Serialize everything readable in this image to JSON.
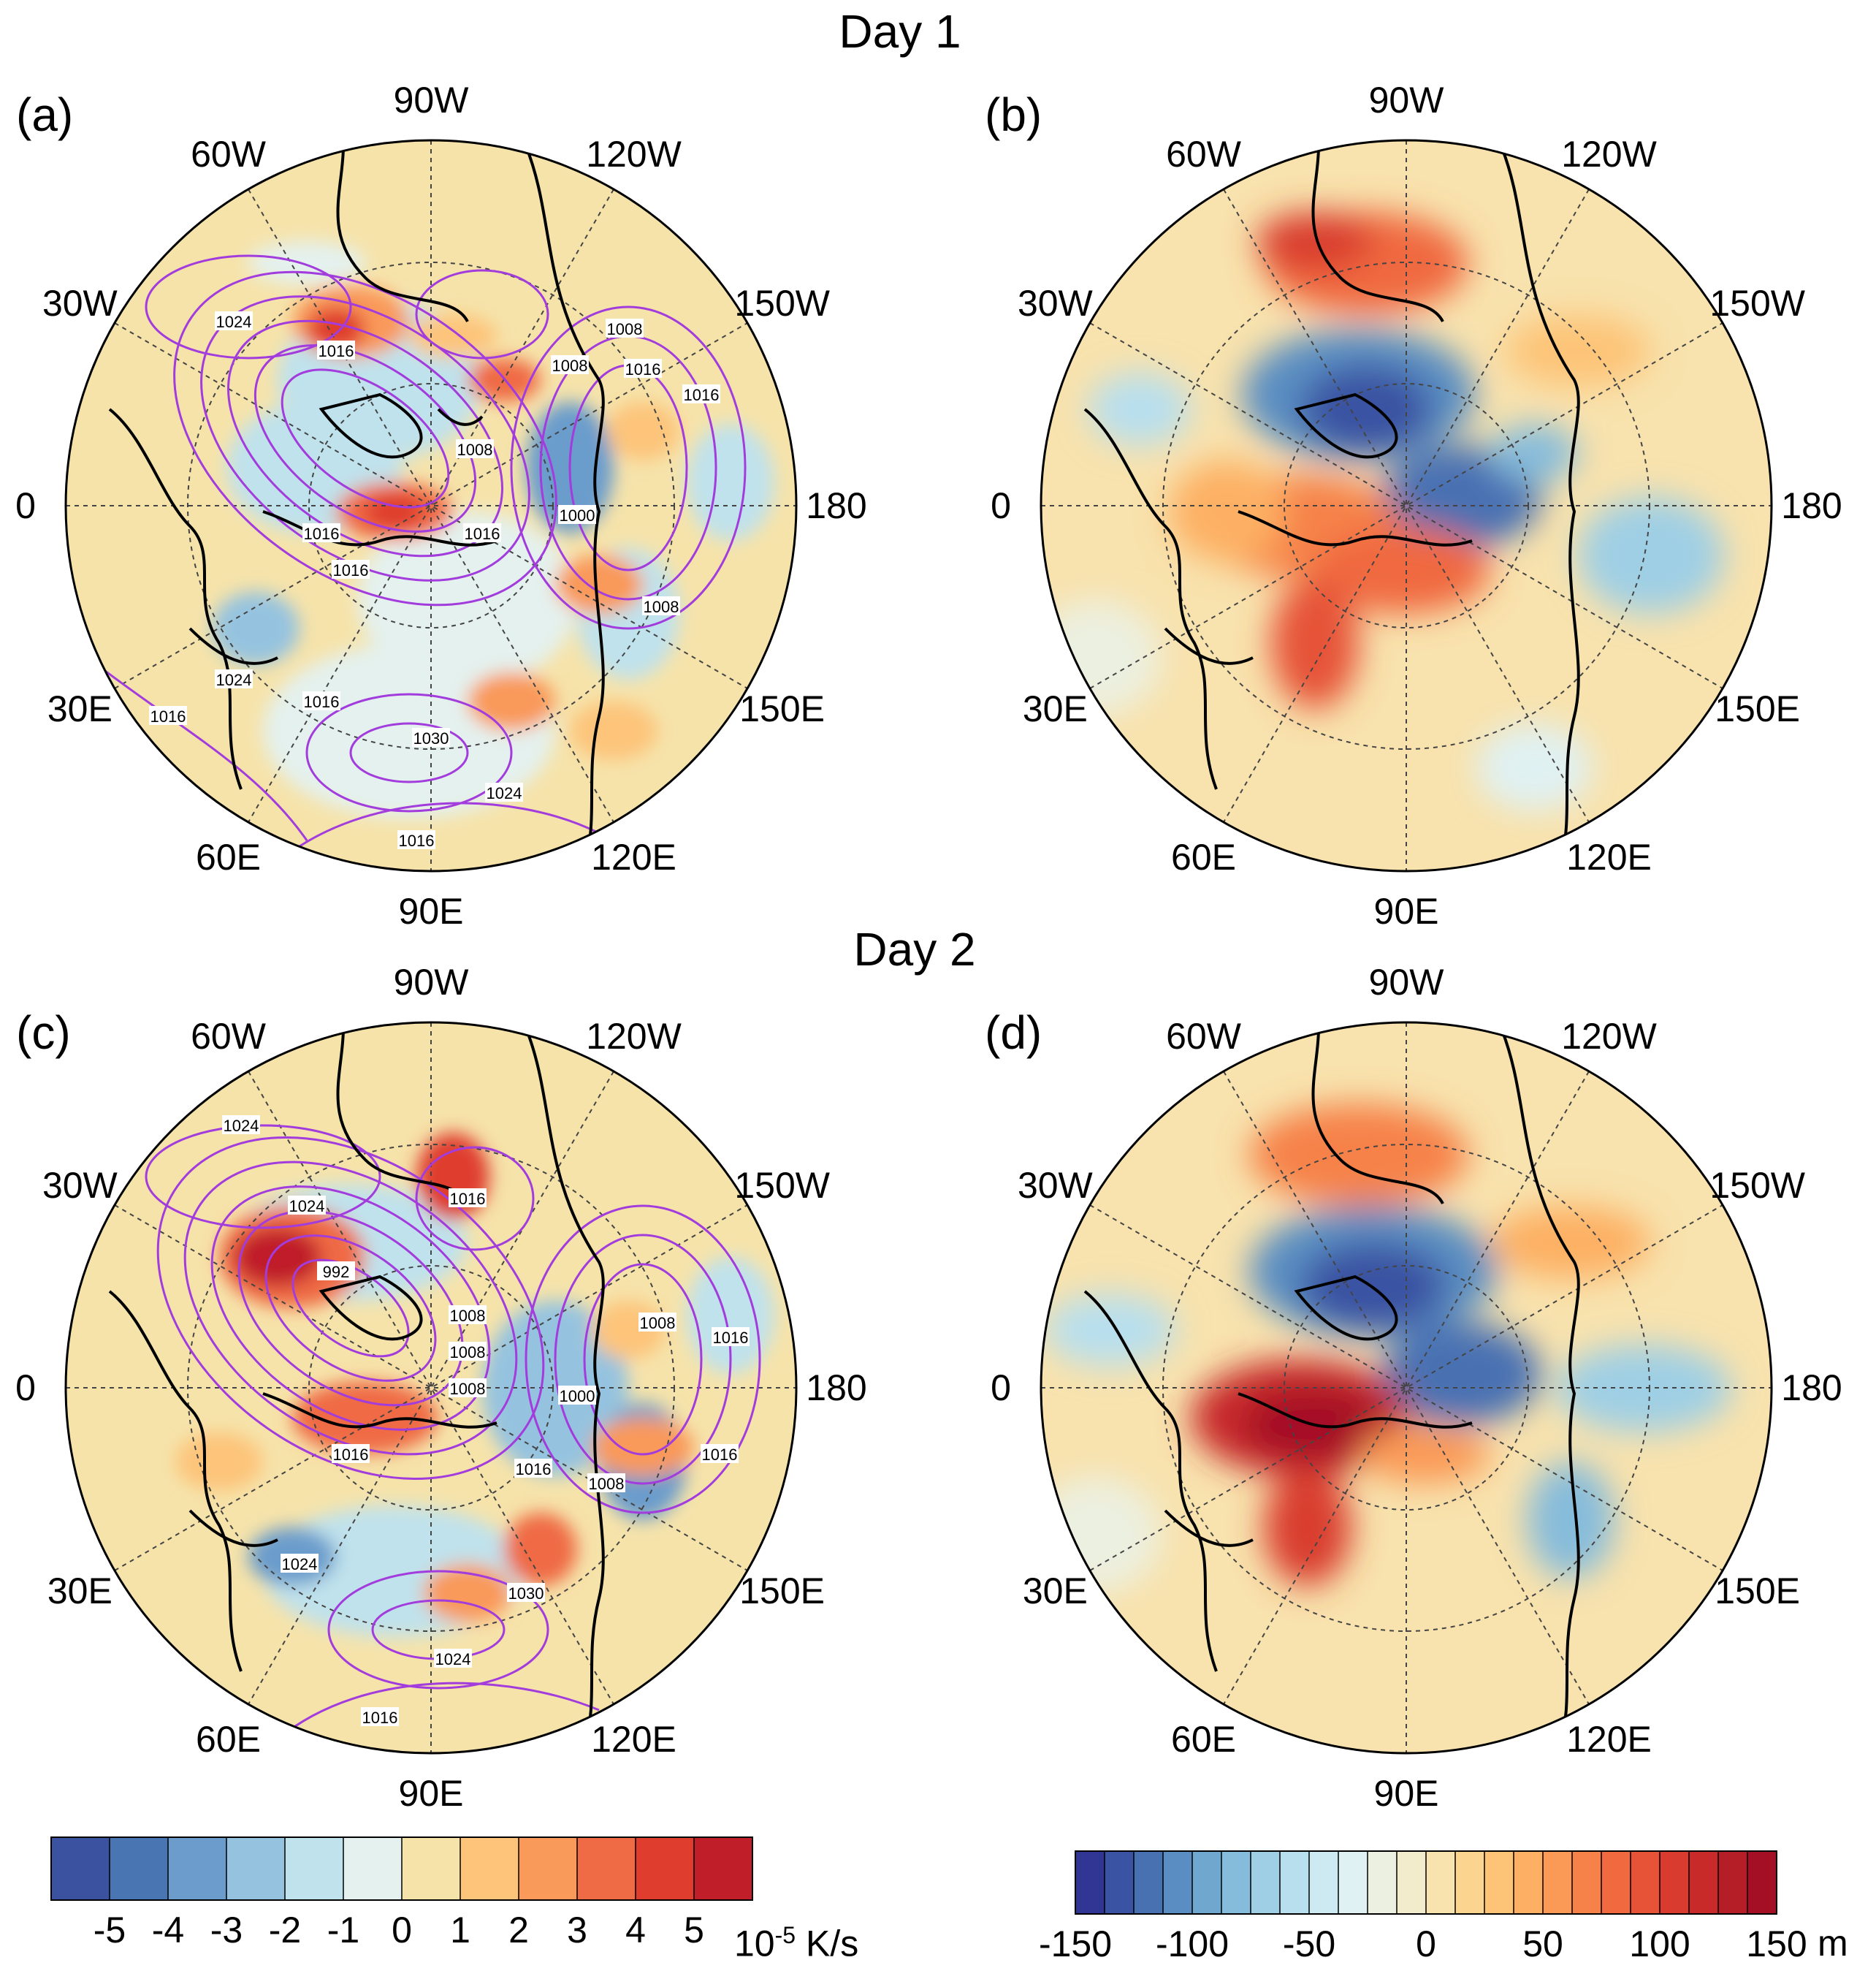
{
  "titles": {
    "day1": "Day 1",
    "day2": "Day 2"
  },
  "panels": [
    {
      "id": "a",
      "label": "(a)",
      "field": "temperature tendency",
      "isobars": true
    },
    {
      "id": "b",
      "label": "(b)",
      "field": "height anomaly",
      "isobars": false
    },
    {
      "id": "c",
      "label": "(c)",
      "field": "temperature tendency",
      "isobars": true
    },
    {
      "id": "d",
      "label": "(d)",
      "field": "height anomaly",
      "isobars": false
    }
  ],
  "longitude_labels": [
    "90W",
    "120W",
    "150W",
    "180",
    "150E",
    "120E",
    "90E",
    "60E",
    "30E",
    "0",
    "30W",
    "60W"
  ],
  "isobar_labels_a": [
    "1024",
    "1016",
    "1016",
    "1008",
    "1016",
    "1016",
    "1008",
    "1000",
    "1008",
    "1016",
    "1016",
    "1024",
    "1030",
    "1024",
    "1016",
    "1016",
    "1016",
    "1008"
  ],
  "isobar_labels_c": [
    "1024",
    "1024",
    "1016",
    "992",
    "1008",
    "1016",
    "1008",
    "1008",
    "1016",
    "1000",
    "1008",
    "1008",
    "1016",
    "1024",
    "1030",
    "1024",
    "1016",
    "1016"
  ],
  "colorbar_left": {
    "ticks": [
      "-5",
      "-4",
      "-3",
      "-2",
      "-1",
      "0",
      "1",
      "2",
      "3",
      "4",
      "5"
    ],
    "unit_base": "10",
    "unit_exp": "-5",
    "unit_rest": " K/s",
    "colors": [
      "#3b52a1",
      "#4a75b3",
      "#6b9ccc",
      "#95c3df",
      "#c0e2ec",
      "#e4f1ee",
      "#f6e3aa",
      "#fdc47a",
      "#f9995a",
      "#ef6b45",
      "#df3d2d",
      "#c01f29"
    ]
  },
  "colorbar_right": {
    "ticks": [
      "-150",
      "-100",
      "-50",
      "0",
      "50",
      "100",
      "150"
    ],
    "unit": "m",
    "colors": [
      "#313695",
      "#3b53a3",
      "#4871b2",
      "#5a8ec2",
      "#6fa7cf",
      "#86bcdb",
      "#9fcfe5",
      "#b8dfee",
      "#cde9f2",
      "#e0f1f3",
      "#ecf0e0",
      "#f3eccc",
      "#f8e2ad",
      "#fbd58f",
      "#fdc478",
      "#fdb064",
      "#fa9a56",
      "#f6824a",
      "#f0693f",
      "#e65337",
      "#d93c2f",
      "#c82a2a",
      "#b51d27",
      "#a50f26"
    ]
  }
}
